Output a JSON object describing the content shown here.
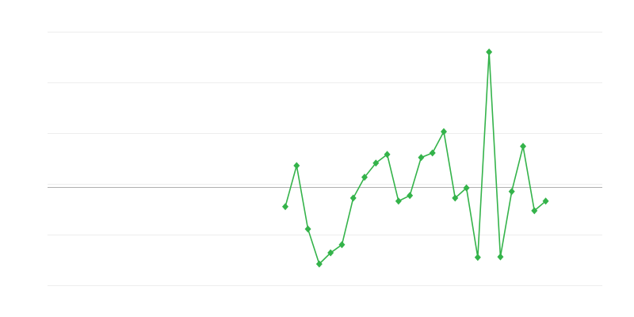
{
  "chart_data": {
    "type": "line",
    "title": "",
    "xlabel": "",
    "ylabel": "",
    "grid": true,
    "legend": "none",
    "xlim": [
      -21,
      28
    ],
    "ylim": [
      -1.94,
      3.06
    ],
    "grid_step": 1,
    "baseline": 0,
    "colors": {
      "series": "#34b34a",
      "grid": "#ededed",
      "baseline": "#b0b0b0"
    },
    "series": [
      {
        "x": [
          0,
          1,
          2,
          3,
          4,
          5,
          6,
          7,
          8,
          9,
          10,
          11,
          12,
          13,
          14,
          15,
          16,
          17,
          18,
          19,
          20,
          21,
          22,
          23
        ],
        "values": [
          -0.39,
          0.42,
          -0.83,
          -1.52,
          -1.3,
          -1.14,
          -0.22,
          0.19,
          0.47,
          0.64,
          -0.28,
          -0.17,
          0.58,
          0.67,
          1.09,
          -0.22,
          -0.02,
          -1.39,
          2.66,
          -1.38,
          -0.09,
          0.8,
          -0.47,
          -0.28
        ],
        "marker": "diamond"
      }
    ]
  }
}
